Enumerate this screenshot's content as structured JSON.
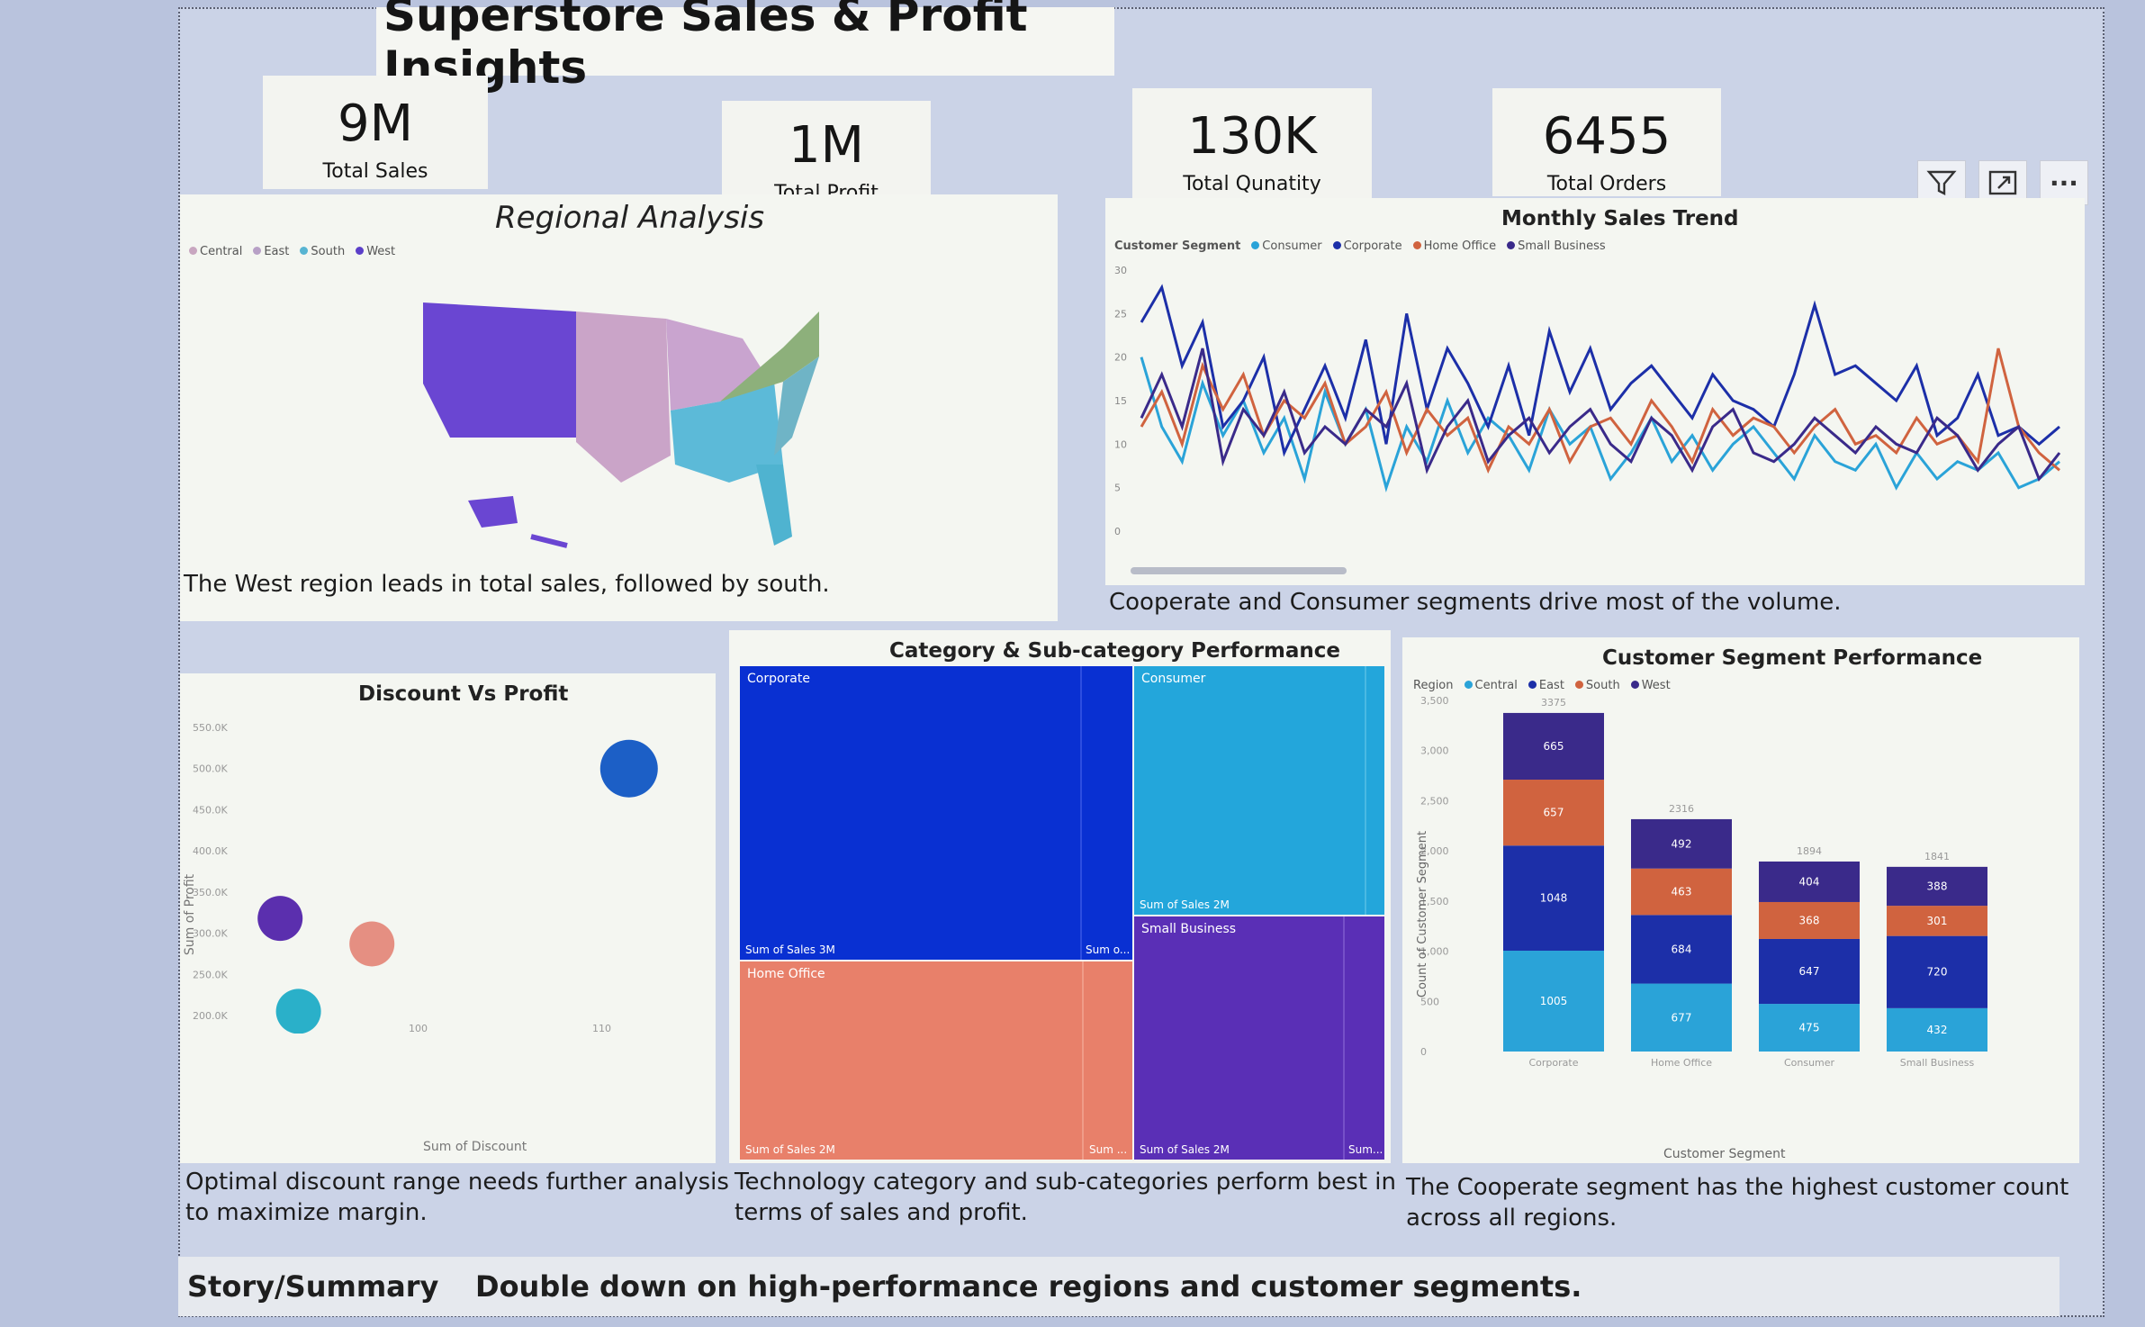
{
  "dashboard": {
    "title": "Superstore Sales & Profit Insights",
    "kpis": [
      {
        "value": "9M",
        "label": "Total Sales"
      },
      {
        "value": "1M",
        "label": "Total Profit"
      },
      {
        "value": "130K",
        "label": "Total Qunatity"
      },
      {
        "value": "6455",
        "label": "Total Orders"
      }
    ]
  },
  "regional": {
    "title": "Regional Analysis",
    "legend": [
      "Central",
      "East",
      "South",
      "West"
    ],
    "legend_colors": [
      "#c8a6c0",
      "#b7a0c6",
      "#57b4d2",
      "#5b3fc9"
    ],
    "caption": "The West region leads in total sales, followed by south."
  },
  "trend": {
    "title": "Monthly Sales Trend",
    "legend_label": "Customer Segment",
    "legend": [
      "Consumer",
      "Corporate",
      "Home Office",
      "Small Business"
    ],
    "legend_colors": [
      "#2aa3d8",
      "#1c2fa8",
      "#d0633f",
      "#3a2a8a"
    ],
    "y_ticks": [
      "30",
      "25",
      "20",
      "15",
      "10",
      "5",
      "0"
    ],
    "caption": "Cooperate and Consumer segments drive most of the volume."
  },
  "toolbar": {
    "filter_icon": "filter-icon",
    "focus_icon": "focus-mode-icon",
    "more_label": "···"
  },
  "discount": {
    "title": "Discount Vs Profit",
    "y_ticks": [
      "550.0K",
      "500.0K",
      "450.0K",
      "400.0K",
      "350.0K",
      "300.0K",
      "250.0K",
      "200.0K"
    ],
    "x_ticks": [
      "100",
      "110"
    ],
    "ylabel": "Sum of Profit",
    "xlabel": "Sum of Discount",
    "caption_line1": "Optimal discount range needs further analysis",
    "caption_line2": "to maximize margin."
  },
  "treemap": {
    "title": "Category & Sub-category Performance",
    "tiles": [
      {
        "name": "Corporate",
        "sales": "Sum of Sales 3M",
        "extra": "Sum o..."
      },
      {
        "name": "Consumer",
        "sales": "Sum of Sales 2M"
      },
      {
        "name": "Home Office",
        "sales": "Sum of Sales 2M",
        "extra": "Sum ..."
      },
      {
        "name": "Small Business",
        "sales": "Sum of Sales 2M",
        "extra": "Sum..."
      }
    ],
    "caption_line1": "Technology category and sub-categories perform best in",
    "caption_line2": "terms of sales and profit."
  },
  "segment": {
    "title": "Customer Segment Performance",
    "legend_label": "Region",
    "legend": [
      "Central",
      "East",
      "South",
      "West"
    ],
    "legend_colors": [
      "#2aa3d8",
      "#1c2fa8",
      "#d0633f",
      "#3a2a8a"
    ],
    "ylabel": "Count of Customer Segment",
    "xlabel": "Customer Segment",
    "y_ticks": [
      "3,500",
      "3,000",
      "2,500",
      "2,000",
      "1,500",
      "1,000",
      "500",
      "0"
    ],
    "caption_line1": "The Cooperate segment has the highest customer count",
    "caption_line2": "across all regions."
  },
  "story": {
    "label": "Story/Summary",
    "text": "Double down on high-performance regions and customer segments."
  },
  "chart_data": [
    {
      "type": "line",
      "title": "Monthly Sales Trend",
      "ylim": [
        0,
        30
      ],
      "series": [
        {
          "name": "Consumer",
          "values": [
            20,
            12,
            8,
            17,
            11,
            15,
            9,
            13,
            6,
            16,
            10,
            14,
            5,
            12,
            8,
            15,
            9,
            13,
            11,
            7,
            14,
            10,
            12,
            6,
            9,
            13,
            8,
            11,
            7,
            10,
            12,
            9,
            6,
            11,
            8,
            7,
            10,
            5,
            9,
            6,
            8,
            7,
            9,
            5,
            6,
            8
          ]
        },
        {
          "name": "Corporate",
          "values": [
            24,
            28,
            19,
            24,
            12,
            15,
            20,
            9,
            14,
            19,
            13,
            22,
            10,
            25,
            14,
            21,
            17,
            12,
            19,
            11,
            23,
            16,
            21,
            14,
            17,
            19,
            16,
            13,
            18,
            15,
            14,
            12,
            18,
            26,
            18,
            19,
            17,
            15,
            19,
            11,
            13,
            18,
            11,
            12,
            10,
            12
          ]
        },
        {
          "name": "Home Office",
          "values": [
            12,
            16,
            10,
            19,
            14,
            18,
            11,
            15,
            13,
            17,
            10,
            12,
            16,
            9,
            14,
            11,
            13,
            7,
            12,
            10,
            14,
            8,
            12,
            13,
            10,
            15,
            12,
            8,
            14,
            11,
            13,
            12,
            9,
            12,
            14,
            10,
            11,
            9,
            13,
            10,
            11,
            8,
            21,
            12,
            9,
            7
          ]
        },
        {
          "name": "Small Business",
          "values": [
            13,
            18,
            12,
            21,
            8,
            14,
            11,
            16,
            9,
            12,
            10,
            14,
            12,
            17,
            7,
            12,
            15,
            8,
            11,
            13,
            9,
            12,
            14,
            10,
            8,
            13,
            11,
            7,
            12,
            14,
            9,
            8,
            10,
            13,
            11,
            9,
            12,
            10,
            9,
            13,
            11,
            7,
            10,
            12,
            6,
            9
          ]
        }
      ]
    },
    {
      "type": "scatter",
      "title": "Discount Vs Profit",
      "xlabel": "Sum of Discount",
      "ylabel": "Sum of Profit",
      "ylim": [
        200000,
        550000
      ],
      "xlim": [
        90,
        115
      ],
      "points": [
        {
          "x": 112,
          "y": 500000,
          "color": "#1c5fc6"
        },
        {
          "x": 93,
          "y": 318000,
          "color": "#5b2fae"
        },
        {
          "x": 98,
          "y": 287000,
          "color": "#e58f82"
        },
        {
          "x": 94,
          "y": 205000,
          "color": "#2ab0c9"
        }
      ]
    },
    {
      "type": "bar",
      "title": "Customer Segment Performance",
      "categories": [
        "Corporate",
        "Home Office",
        "Consumer",
        "Small Business"
      ],
      "totals": [
        3375,
        2316,
        1894,
        1841
      ],
      "ylim": [
        0,
        3500
      ],
      "series": [
        {
          "name": "Central",
          "values": [
            1005,
            677,
            475,
            432
          ]
        },
        {
          "name": "East",
          "values": [
            1048,
            684,
            647,
            720
          ]
        },
        {
          "name": "South",
          "values": [
            657,
            463,
            368,
            301
          ]
        },
        {
          "name": "West",
          "values": [
            665,
            492,
            404,
            388
          ]
        }
      ]
    }
  ]
}
